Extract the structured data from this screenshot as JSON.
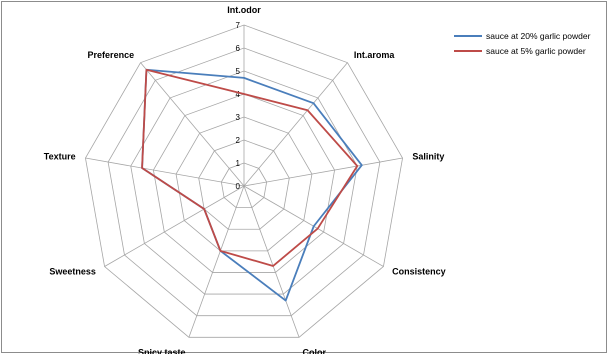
{
  "chart_data": {
    "type": "radar",
    "categories": [
      "Int.odor",
      "Int.aroma",
      "Salinity",
      "Consistency",
      "Color",
      "Spicy taste",
      "Sweetness",
      "Texture",
      "Preference"
    ],
    "rmax": 7,
    "ticks": [
      "0",
      "1",
      "2",
      "3",
      "4",
      "5",
      "6",
      "7"
    ],
    "grid": true,
    "legend_position": "top-right",
    "series": [
      {
        "name": "sauce at 20% garlic powder",
        "color": "#4a7ebb",
        "values": [
          4.7,
          4.7,
          5.2,
          3.5,
          5.3,
          3.0,
          2.0,
          4.5,
          6.6
        ]
      },
      {
        "name": "sauce at 5% garlic powder",
        "color": "#be4b48",
        "values": [
          4.0,
          4.3,
          5.0,
          3.7,
          3.7,
          3.0,
          2.0,
          4.5,
          6.6
        ]
      }
    ]
  }
}
